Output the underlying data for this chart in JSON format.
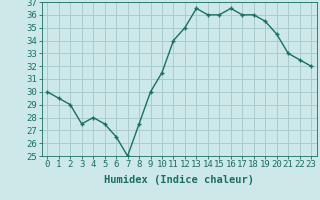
{
  "x": [
    0,
    1,
    2,
    3,
    4,
    5,
    6,
    7,
    8,
    9,
    10,
    11,
    12,
    13,
    14,
    15,
    16,
    17,
    18,
    19,
    20,
    21,
    22,
    23
  ],
  "y": [
    30,
    29.5,
    29,
    27.5,
    28,
    27.5,
    26.5,
    25,
    27.5,
    30,
    31.5,
    34,
    35,
    36.5,
    36,
    36,
    36.5,
    36,
    36,
    35.5,
    34.5,
    33,
    32.5,
    32
  ],
  "line_color": "#1a7060",
  "marker": "+",
  "bg_color": "#cce8e8",
  "grid_color": "#aacccc",
  "xlabel": "Humidex (Indice chaleur)",
  "ylim": [
    25,
    37
  ],
  "xlim_min": -0.5,
  "xlim_max": 23.5,
  "yticks": [
    25,
    26,
    27,
    28,
    29,
    30,
    31,
    32,
    33,
    34,
    35,
    36,
    37
  ],
  "xticks": [
    0,
    1,
    2,
    3,
    4,
    5,
    6,
    7,
    8,
    9,
    10,
    11,
    12,
    13,
    14,
    15,
    16,
    17,
    18,
    19,
    20,
    21,
    22,
    23
  ],
  "xtick_labels": [
    "0",
    "1",
    "2",
    "3",
    "4",
    "5",
    "6",
    "7",
    "8",
    "9",
    "10",
    "11",
    "12",
    "13",
    "14",
    "15",
    "16",
    "17",
    "18",
    "19",
    "20",
    "21",
    "22",
    "23"
  ],
  "axis_label_color": "#1a7060",
  "tick_color": "#1a7060",
  "font_size_xlabel": 7.5,
  "font_size_ticks": 6.5,
  "linewidth": 1.0,
  "markersize": 3.5,
  "markeredgewidth": 1.0
}
